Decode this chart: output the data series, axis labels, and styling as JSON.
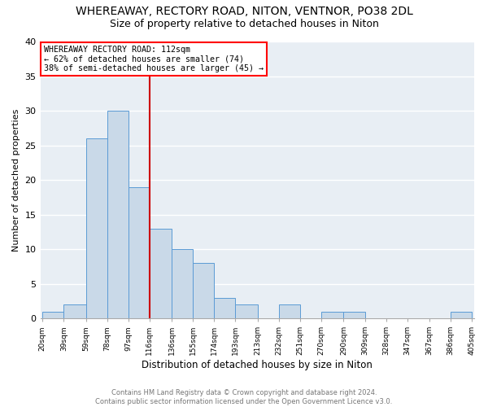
{
  "title": "WHEREAWAY, RECTORY ROAD, NITON, VENTNOR, PO38 2DL",
  "subtitle": "Size of property relative to detached houses in Niton",
  "xlabel": "Distribution of detached houses by size in Niton",
  "ylabel": "Number of detached properties",
  "bins": [
    "20sqm",
    "39sqm",
    "59sqm",
    "78sqm",
    "97sqm",
    "116sqm",
    "136sqm",
    "155sqm",
    "174sqm",
    "193sqm",
    "213sqm",
    "232sqm",
    "251sqm",
    "270sqm",
    "290sqm",
    "309sqm",
    "328sqm",
    "347sqm",
    "367sqm",
    "386sqm",
    "405sqm"
  ],
  "counts": [
    1,
    2,
    26,
    30,
    19,
    13,
    10,
    8,
    3,
    2,
    0,
    2,
    0,
    1,
    1,
    0,
    0,
    0,
    0,
    1
  ],
  "bin_edges": [
    20,
    39,
    59,
    78,
    97,
    116,
    136,
    155,
    174,
    193,
    213,
    232,
    251,
    270,
    290,
    309,
    328,
    347,
    367,
    386,
    405
  ],
  "property_size": 112,
  "bar_color": "#c9d9e8",
  "bar_edge_color": "#5b9bd5",
  "vline_color": "#cc0000",
  "vline_x": 116,
  "annotation_line1": "WHEREAWAY RECTORY ROAD: 112sqm",
  "annotation_line2": "← 62% of detached houses are smaller (74)",
  "annotation_line3": "38% of semi-detached houses are larger (45) →",
  "ylim": [
    0,
    40
  ],
  "yticks": [
    0,
    5,
    10,
    15,
    20,
    25,
    30,
    35,
    40
  ],
  "footer_line1": "Contains HM Land Registry data © Crown copyright and database right 2024.",
  "footer_line2": "Contains public sector information licensed under the Open Government Licence v3.0.",
  "background_color": "#e8eef4",
  "title_fontsize": 10,
  "subtitle_fontsize": 9
}
